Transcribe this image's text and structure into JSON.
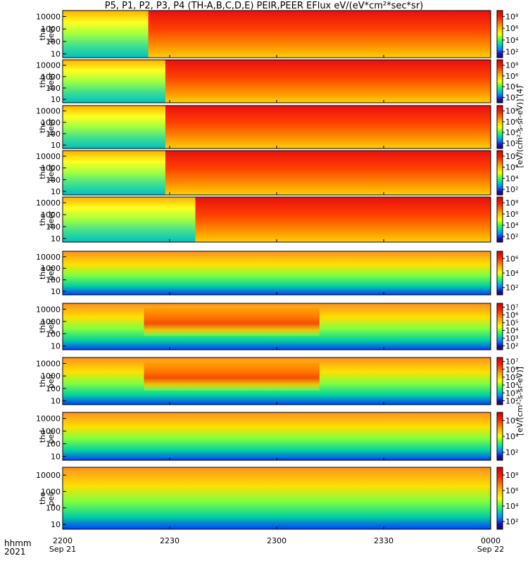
{
  "title": "P5, P1, P2, P3, P4 (TH-A,B,C,D,E) PEIR,PEER EFlux eV/(eV*cm²*sec*sr)",
  "colorbar_units_peer": "[eV/(cm²-s-sr-eV)] (4)",
  "colorbar_units_peir": "[eV/(cm²-s-sr-eV)]",
  "xaxis_header": {
    "line1": "hhmm",
    "line2": "2021"
  },
  "chart_data": {
    "type": "heatmap",
    "x_ticks": [
      {
        "t": 0,
        "label": "2200",
        "sub": "Sep 21"
      },
      {
        "t": 30,
        "label": "2230",
        "sub": ""
      },
      {
        "t": 60,
        "label": "2300",
        "sub": ""
      },
      {
        "t": 90,
        "label": "2330",
        "sub": ""
      },
      {
        "t": 120,
        "label": "0000",
        "sub": "Sep 22"
      }
    ],
    "x_range_minutes": [
      0,
      120
    ],
    "y_ticks": [
      "10",
      "100",
      "1000",
      "10000"
    ],
    "y_log": true,
    "y_range_eV": [
      5,
      30000
    ],
    "panels": [
      {
        "probe": "tha",
        "product": "peer",
        "label1": "tha",
        "label2": "peer",
        "cbar_ticks": [
          "10⁸",
          "10⁶",
          "10⁴",
          "10²"
        ],
        "onset": 0.2
      },
      {
        "probe": "thb",
        "product": "peer",
        "label1": "thb",
        "label2": "peer",
        "cbar_ticks": [
          "10⁸",
          "10⁶",
          "10⁴",
          "10²"
        ],
        "onset": 0.24
      },
      {
        "probe": "thc",
        "product": "peer",
        "label1": "thc",
        "label2": "peer",
        "cbar_ticks": [
          "10⁸",
          "10⁶",
          "10⁴",
          "10²"
        ],
        "onset": 0.24
      },
      {
        "probe": "thd",
        "product": "peer",
        "label1": "thd",
        "label2": "peer",
        "cbar_ticks": [
          "10⁸",
          "10⁶",
          "10⁴",
          "10²"
        ],
        "onset": 0.24
      },
      {
        "probe": "the",
        "product": "peer",
        "label1": "the",
        "label2": "peer",
        "cbar_ticks": [
          "10⁸",
          "10⁶",
          "10⁴",
          "10²"
        ],
        "onset": 0.31
      },
      {
        "probe": "tha",
        "product": "peir",
        "label1": "tha",
        "label2": "peir",
        "cbar_ticks": [
          "10⁶",
          "10⁴",
          "10²"
        ],
        "onset": 1.0
      },
      {
        "probe": "thb",
        "product": "peir",
        "label1": "thb",
        "label2": "peir",
        "cbar_ticks": [
          "10⁷",
          "10⁶",
          "10⁵",
          "10⁴",
          "10³",
          "10²"
        ],
        "onset": 1.0
      },
      {
        "probe": "thc",
        "product": "peir",
        "label1": "thc",
        "label2": "peir",
        "cbar_ticks": [
          "10⁷",
          "10⁶",
          "10⁵",
          "10⁴",
          "10³",
          "10²"
        ],
        "onset": 1.0
      },
      {
        "probe": "thd",
        "product": "peir",
        "label1": "thd",
        "label2": "peir",
        "cbar_ticks": [
          "10⁶",
          "10⁴",
          "10²"
        ],
        "onset": 1.0
      },
      {
        "probe": "the",
        "product": "peir",
        "label1": "the",
        "label2": "peir",
        "cbar_ticks": [
          "10⁸",
          "10⁶",
          "10⁴",
          "10²"
        ],
        "onset": 1.0
      }
    ]
  }
}
